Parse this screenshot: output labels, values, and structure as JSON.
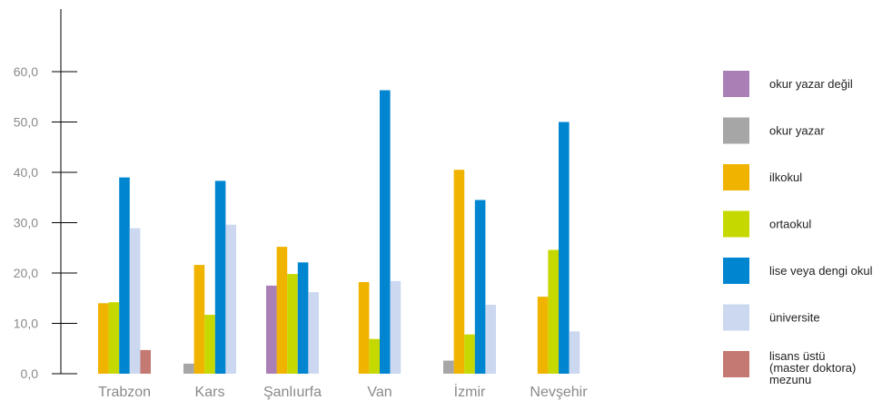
{
  "chart_data": {
    "type": "bar",
    "title": "",
    "xlabel": "",
    "ylabel": "",
    "ylim": [
      0,
      72
    ],
    "yticks": [
      0,
      10,
      20,
      30,
      40,
      50,
      60
    ],
    "ytick_labels": [
      "0,0",
      "10,0",
      "20,0",
      "30,0",
      "40,0",
      "50,0",
      "60,0"
    ],
    "grid": false,
    "legend_position": "right",
    "categories": [
      "Trabzon",
      "Kars",
      "Şanlıurfa",
      "Van",
      "İzmir",
      "Nevşehir"
    ],
    "series": [
      {
        "name": "okur yazar değil",
        "color": "#a97fb5",
        "values": [
          null,
          null,
          17.5,
          null,
          null,
          null
        ]
      },
      {
        "name": "okur yazar",
        "color": "#a6a6a6",
        "values": [
          null,
          2.0,
          null,
          null,
          2.6,
          null
        ]
      },
      {
        "name": "ilkokul",
        "color": "#f0b400",
        "values": [
          14.0,
          21.6,
          25.2,
          18.2,
          40.5,
          15.3
        ]
      },
      {
        "name": "ortaokul",
        "color": "#c5d900",
        "values": [
          14.2,
          11.7,
          19.8,
          6.9,
          7.8,
          24.6
        ]
      },
      {
        "name": "lise veya dengi okul",
        "color": "#0085d0",
        "values": [
          39.0,
          38.3,
          22.1,
          56.3,
          34.5,
          50.0
        ]
      },
      {
        "name": "üniversite",
        "color": "#cbd8f0",
        "values": [
          28.9,
          29.6,
          16.2,
          18.4,
          13.7,
          8.4
        ]
      },
      {
        "name": "lisans üstü (master doktora) mezunu",
        "color": "#c47a72",
        "values": [
          4.7,
          null,
          null,
          null,
          null,
          null
        ]
      }
    ]
  }
}
